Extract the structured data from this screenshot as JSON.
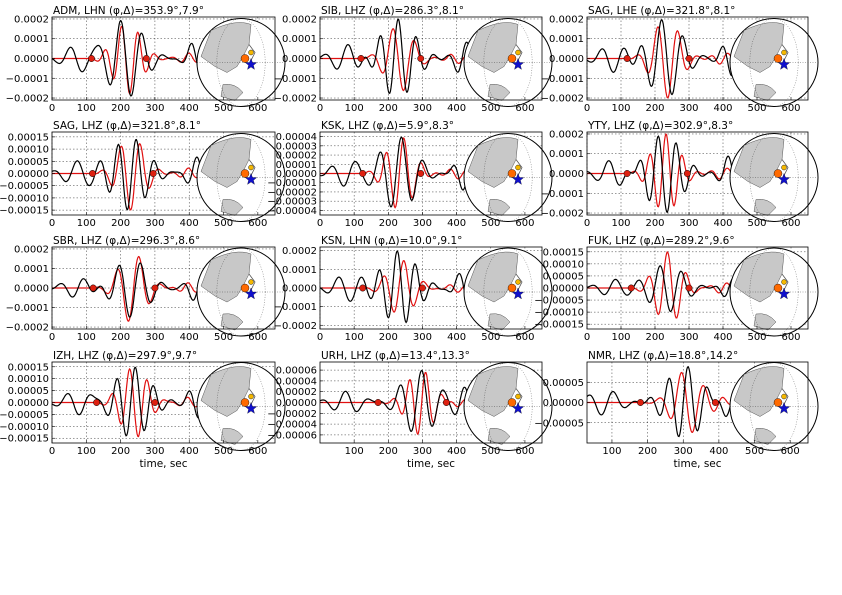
{
  "figure": {
    "xlabel": "time, sec",
    "colors": {
      "observed": "#000000",
      "synthetic": "#e01010",
      "marker_fill": "#dd2010",
      "land": "#c8c8c8",
      "event_star": "#1010cc",
      "source_dot": "#ff6a00",
      "station_dot": "#f5b800"
    },
    "panel_note": "Each panel: observed (black) and synthetic (red) waveforms with two red dot markers, plus an inset orthographic globe of East Asia / Western Pacific showing source (blue star) and station."
  },
  "chart_data": [
    {
      "type": "line",
      "station": "ADM",
      "channel": "LHN",
      "title": "ADM, LHN",
      "title_suffix": "(φ,Δ)=353.9°,7.9°",
      "xlim": [
        0,
        650
      ],
      "ylim": [
        -0.00021,
        0.00021
      ],
      "yticks": [
        "0.0002",
        "0.0001",
        "0.0000",
        "−0.0001",
        "−0.0002"
      ],
      "yvals": [
        0.0002,
        0.0001,
        0,
        -0.0001,
        -0.0002
      ],
      "xticks": [
        0,
        100,
        200,
        300,
        400,
        500,
        600
      ],
      "markers": [
        115,
        275
      ],
      "seed": 1,
      "amp_obs": 0.0002,
      "amp_syn": 0.00018
    },
    {
      "type": "line",
      "station": "SIB",
      "channel": "LHZ",
      "title": "SIB, LHZ",
      "title_suffix": "(φ,Δ)=286.3°,8.1°",
      "xlim": [
        0,
        650
      ],
      "ylim": [
        -0.00021,
        0.00021
      ],
      "yticks": [
        "0.0002",
        "0.0001",
        "0.0000",
        "−0.0001",
        "−0.0002"
      ],
      "yvals": [
        0.0002,
        0.0001,
        0,
        -0.0001,
        -0.0002
      ],
      "xticks": [
        0,
        100,
        200,
        300,
        400,
        500,
        600
      ],
      "markers": [
        120,
        295
      ],
      "seed": 2,
      "amp_obs": 0.0002,
      "amp_syn": 0.00017
    },
    {
      "type": "line",
      "station": "SAG",
      "channel": "LHE",
      "title": "SAG, LHE",
      "title_suffix": "(φ,Δ)=321.8°,8.1°",
      "xlim": [
        0,
        650
      ],
      "ylim": [
        -0.00021,
        0.00021
      ],
      "yticks": [
        "0.0002",
        "0.0001",
        "0.0000",
        "−0.0001",
        "−0.0002"
      ],
      "yvals": [
        0.0002,
        0.0001,
        0,
        -0.0001,
        -0.0002
      ],
      "xticks": [
        0,
        100,
        200,
        300,
        400,
        500,
        600
      ],
      "markers": [
        118,
        300
      ],
      "seed": 3,
      "amp_obs": 0.0002,
      "amp_syn": 0.0002
    },
    {
      "type": "line",
      "station": "SAG",
      "channel": "LHZ",
      "title": "SAG, LHZ",
      "title_suffix": "(φ,Δ)=321.8°,8.1°",
      "xlim": [
        0,
        650
      ],
      "ylim": [
        -0.00017,
        0.00017
      ],
      "yticks": [
        "0.00015",
        "0.00010",
        "0.00005",
        "0.00000",
        "−0.00005",
        "−0.00010",
        "−0.00015"
      ],
      "yvals": [
        0.00015,
        0.0001,
        5e-05,
        0,
        -5e-05,
        -0.0001,
        -0.00015
      ],
      "xticks": [
        0,
        100,
        200,
        300,
        400,
        500,
        600
      ],
      "markers": [
        118,
        295
      ],
      "seed": 4,
      "amp_obs": 0.00015,
      "amp_syn": 0.00015
    },
    {
      "type": "line",
      "station": "KSK",
      "channel": "LHZ",
      "title": "KSK, LHZ",
      "title_suffix": "(φ,Δ)=5.9°,8.3°",
      "xlim": [
        0,
        650
      ],
      "ylim": [
        -4.5e-05,
        4.5e-05
      ],
      "yticks": [
        "0.00004",
        "0.00003",
        "0.00002",
        "0.00001",
        "0.00000",
        "−0.00001",
        "−0.00002",
        "−0.00003",
        "−0.00004"
      ],
      "yvals": [
        4e-05,
        3e-05,
        2e-05,
        1e-05,
        0,
        -1e-05,
        -2e-05,
        -3e-05,
        -4e-05
      ],
      "xticks": [
        0,
        100,
        200,
        300,
        400,
        500,
        600
      ],
      "markers": [
        125,
        295
      ],
      "seed": 5,
      "amp_obs": 4e-05,
      "amp_syn": 4e-05
    },
    {
      "type": "line",
      "station": "YTY",
      "channel": "LHZ",
      "title": "YTY, LHZ",
      "title_suffix": "(φ,Δ)=302.9°,8.3°",
      "xlim": [
        0,
        650
      ],
      "ylim": [
        -0.00021,
        0.00021
      ],
      "yticks": [
        "0.0002",
        "0.0001",
        "0.0000",
        "−0.0001",
        "−0.0002"
      ],
      "yvals": [
        0.0002,
        0.0001,
        0,
        -0.0001,
        -0.0002
      ],
      "xticks": [
        0,
        100,
        200,
        300,
        400,
        500,
        600
      ],
      "markers": [
        118,
        295
      ],
      "seed": 6,
      "amp_obs": 0.0002,
      "amp_syn": 0.0002
    },
    {
      "type": "line",
      "station": "SBR",
      "channel": "LHZ",
      "title": "SBR, LHZ",
      "title_suffix": "(φ,Δ)=296.3°,8.6°",
      "xlim": [
        0,
        650
      ],
      "ylim": [
        -0.00021,
        0.00021
      ],
      "yticks": [
        "0.0002",
        "0.0001",
        "0.0000",
        "−0.0001",
        "−0.0002"
      ],
      "yvals": [
        0.0002,
        0.0001,
        0,
        -0.0001,
        -0.0002
      ],
      "xticks": [
        0,
        100,
        200,
        300,
        400,
        500,
        600
      ],
      "markers": [
        120,
        300
      ],
      "seed": 7,
      "amp_obs": 0.00015,
      "amp_syn": 0.00018
    },
    {
      "type": "line",
      "station": "KSN",
      "channel": "LHN",
      "title": "KSN, LHN",
      "title_suffix": "(φ,Δ)=10.0°,9.1°",
      "xlim": [
        0,
        650
      ],
      "ylim": [
        -0.00022,
        0.00022
      ],
      "yticks": [
        "0.0002",
        "0.0001",
        "0.0000",
        "−0.0001",
        "−0.0002"
      ],
      "yvals": [
        0.0002,
        0.0001,
        0,
        -0.0001,
        -0.0002
      ],
      "xticks": [
        0,
        100,
        200,
        300,
        400,
        500,
        600
      ],
      "markers": [
        125,
        300
      ],
      "seed": 8,
      "amp_obs": 0.0002,
      "amp_syn": 0.00015
    },
    {
      "type": "line",
      "station": "FUK",
      "channel": "LHZ",
      "title": "FUK, LHZ",
      "title_suffix": "(φ,Δ)=289.2°,9.6°",
      "xlim": [
        0,
        650
      ],
      "ylim": [
        -0.00017,
        0.00017
      ],
      "yticks": [
        "0.00015",
        "0.00010",
        "0.00005",
        "0.00000",
        "−0.00005",
        "−0.00010",
        "−0.00015"
      ],
      "yvals": [
        0.00015,
        0.0001,
        5e-05,
        0,
        -5e-05,
        -0.0001,
        -0.00015
      ],
      "xticks": [
        0,
        100,
        200,
        300,
        400,
        500,
        600
      ],
      "markers": [
        130,
        300
      ],
      "seed": 9,
      "amp_obs": 0.0001,
      "amp_syn": 0.00015
    },
    {
      "type": "line",
      "station": "IZH",
      "channel": "LHZ",
      "title": "IZH, LHZ",
      "title_suffix": "(φ,Δ)=297.9°,9.7°",
      "xlim": [
        0,
        650
      ],
      "ylim": [
        -0.00017,
        0.00017
      ],
      "yticks": [
        "0.00015",
        "0.00010",
        "0.00005",
        "0.00000",
        "−0.00005",
        "−0.00010",
        "−0.00015"
      ],
      "yvals": [
        0.00015,
        0.0001,
        5e-05,
        0,
        -5e-05,
        -0.0001,
        -0.00015
      ],
      "xticks": [
        0,
        100,
        200,
        300,
        400,
        500,
        600
      ],
      "markers": [
        130,
        300
      ],
      "seed": 10,
      "amp_obs": 0.00015,
      "amp_syn": 0.00015
    },
    {
      "type": "line",
      "station": "URH",
      "channel": "LHZ",
      "title": "URH, LHZ",
      "title_suffix": "(φ,Δ)=13.4°,13.3°",
      "xlim": [
        0,
        650
      ],
      "ylim": [
        -7.5e-05,
        7.5e-05
      ],
      "yticks": [
        "0.00006",
        "0.00004",
        "0.00002",
        "0.00000",
        "−0.00002",
        "−0.00004",
        "−0.00006"
      ],
      "yvals": [
        6e-05,
        4e-05,
        2e-05,
        0,
        -2e-05,
        -4e-05,
        -6e-05
      ],
      "xticks": [
        100,
        200,
        300,
        400,
        500,
        600
      ],
      "markers": [
        170,
        370
      ],
      "seed": 11,
      "amp_obs": 6e-05,
      "amp_syn": 6e-05
    },
    {
      "type": "line",
      "station": "NMR",
      "channel": "LHZ",
      "title": "NMR, LHZ",
      "title_suffix": "(φ,Δ)=18.8°,14.2°",
      "xlim": [
        30,
        650
      ],
      "ylim": [
        -0.0001,
        0.0001
      ],
      "yticks": [
        "0.00005",
        "0.00000",
        "−0.00005"
      ],
      "yvals": [
        5e-05,
        0,
        -5e-05
      ],
      "xticks": [
        100,
        200,
        300,
        400,
        500,
        600
      ],
      "markers": [
        180,
        390
      ],
      "seed": 12,
      "amp_obs": 9e-05,
      "amp_syn": 8e-05
    }
  ]
}
